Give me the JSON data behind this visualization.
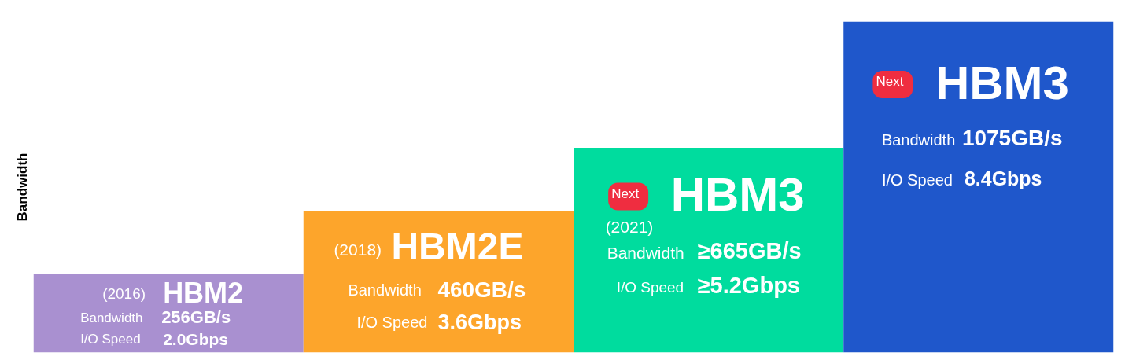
{
  "chart_data": {
    "type": "bar",
    "ylabel": "Bandwidth",
    "categories": [
      "HBM2",
      "HBM2E",
      "HBM3",
      "HBM3"
    ],
    "values": [
      256,
      460,
      665,
      1075
    ],
    "colors": [
      "#a990d0",
      "#fda52b",
      "#00dc9e",
      "#1f57cb"
    ],
    "value_labels": [
      "256GB/s",
      "460GB/s",
      "≥665GB/s",
      "1075GB/s"
    ],
    "tick_labels": false,
    "annotations": [
      "(2016)",
      "Bandwidth",
      "I/O Speed",
      "2.0Gbps",
      "(2018)",
      "Bandwidth",
      "I/O Speed",
      "3.6Gbps",
      "Next",
      "(2021)",
      "Bandwidth",
      "I/O Speed",
      "≥5.2Gbps",
      "Next",
      "Bandwidth",
      "I/O Speed",
      "8.4Gbps"
    ]
  }
}
